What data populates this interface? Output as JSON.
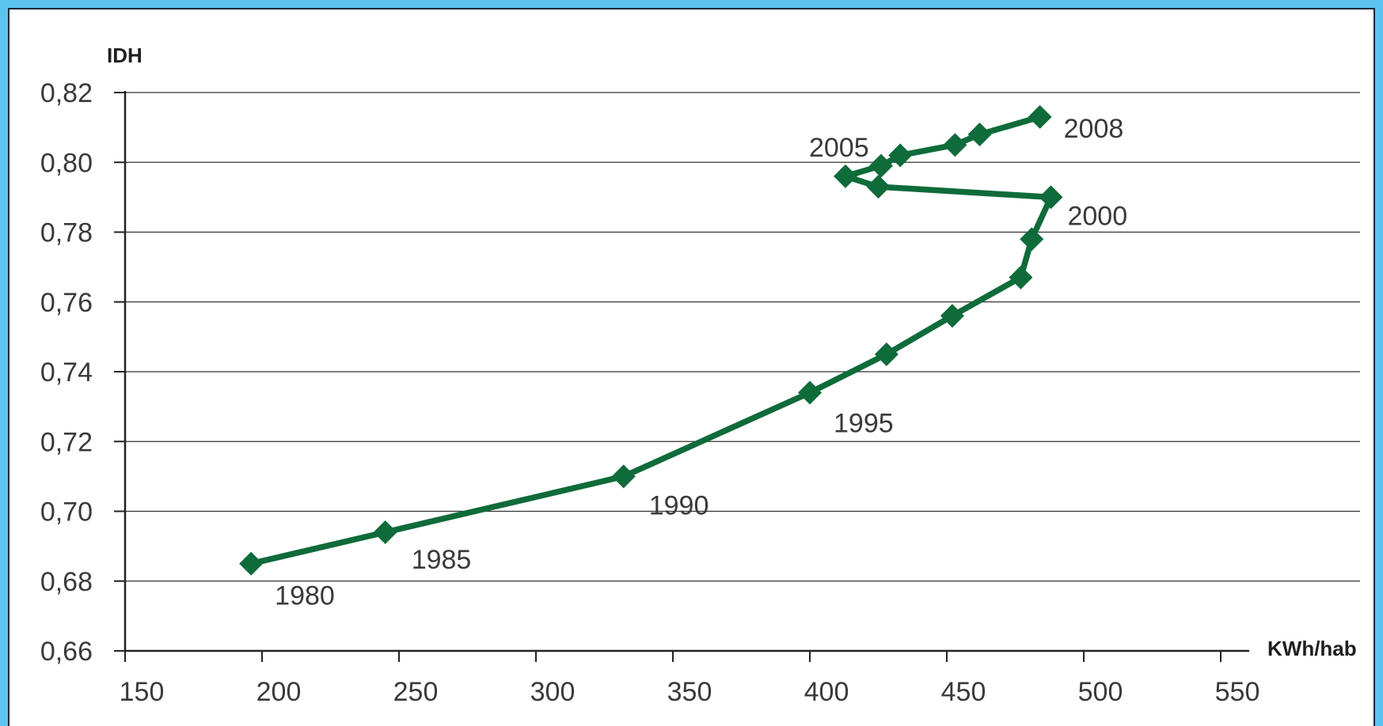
{
  "chart_data": {
    "type": "line",
    "ylabel": "IDH",
    "xlabel": "KWh/hab",
    "xlim": [
      150,
      550
    ],
    "ylim": [
      0.66,
      0.82
    ],
    "x_ticks": [
      150,
      200,
      250,
      300,
      350,
      400,
      450,
      500,
      550
    ],
    "x_tick_labels": [
      "150",
      "200",
      "250",
      "300",
      "350",
      "400",
      "450",
      "500",
      "550"
    ],
    "y_ticks": [
      0.66,
      0.68,
      0.7,
      0.72,
      0.74,
      0.76,
      0.78,
      0.8,
      0.82
    ],
    "y_tick_labels": [
      "0,66",
      "0,68",
      "0,70",
      "0,72",
      "0,74",
      "0,76",
      "0,78",
      "0,80",
      "0,82"
    ],
    "grid": "horizontal",
    "series": [
      {
        "color": "#0f6b3a",
        "marker": "diamond",
        "points": [
          {
            "x": 196,
            "y": 0.685
          },
          {
            "x": 245,
            "y": 0.694
          },
          {
            "x": 332,
            "y": 0.71
          },
          {
            "x": 400,
            "y": 0.734
          },
          {
            "x": 428,
            "y": 0.745
          },
          {
            "x": 452,
            "y": 0.756
          },
          {
            "x": 477,
            "y": 0.767
          },
          {
            "x": 481,
            "y": 0.778
          },
          {
            "x": 488,
            "y": 0.79
          },
          {
            "x": 425,
            "y": 0.793
          },
          {
            "x": 413,
            "y": 0.796
          },
          {
            "x": 426,
            "y": 0.799
          },
          {
            "x": 433,
            "y": 0.802
          },
          {
            "x": 453,
            "y": 0.805
          },
          {
            "x": 462,
            "y": 0.808
          },
          {
            "x": 484,
            "y": 0.813
          }
        ]
      }
    ],
    "annotations": [
      {
        "text": "1980",
        "x": 196,
        "y": 0.685
      },
      {
        "text": "1985",
        "x": 245,
        "y": 0.694
      },
      {
        "text": "1990",
        "x": 332,
        "y": 0.71
      },
      {
        "text": "1995",
        "x": 400,
        "y": 0.734
      },
      {
        "text": "2000",
        "x": 488,
        "y": 0.79
      },
      {
        "text": "2005",
        "x": 413,
        "y": 0.796
      },
      {
        "text": "2008",
        "x": 484,
        "y": 0.813
      }
    ]
  }
}
